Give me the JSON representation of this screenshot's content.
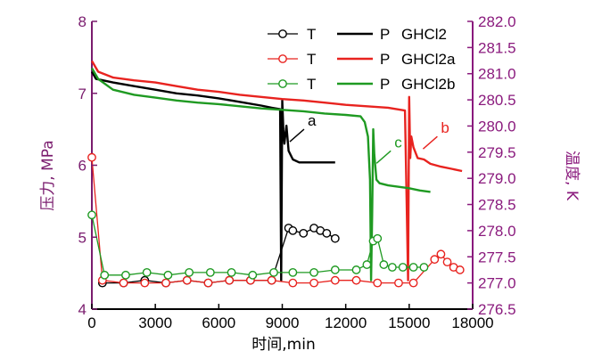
{
  "colors": {
    "left_axis": "#7a1c6e",
    "right_axis": "#8a1a7d",
    "x_axis": "#000000",
    "GHCl2": "#000000",
    "GHCl2a": "#e8231f",
    "GHCl2b": "#1f9a22"
  },
  "chart_data": {
    "type": "line",
    "xlabel": "时间,min",
    "ylabel_left": "压力, MPa",
    "ylabel_right": "温度, K",
    "xlim": [
      0,
      18000
    ],
    "ylim_left": [
      4,
      8
    ],
    "ylim_right": [
      276.5,
      282.0
    ],
    "x_ticks": [
      "0",
      "3000",
      "6000",
      "9000",
      "12000",
      "15000",
      "18000"
    ],
    "y_left_ticks": [
      "4",
      "5",
      "6",
      "7",
      "8"
    ],
    "y_right_ticks": [
      "276.5",
      "277.0",
      "277.5",
      "278.0",
      "278.5",
      "279.0",
      "279.5",
      "280.0",
      "280.5",
      "281.0",
      "281.5",
      "282.0"
    ],
    "legend": {
      "placement": "top-right",
      "rows": [
        {
          "t_label": "T",
          "p_label": "P",
          "name": "GHCl2",
          "color_key": "GHCl2"
        },
        {
          "t_label": "T",
          "p_label": "P",
          "name": "GHCl2a",
          "color_key": "GHCl2a"
        },
        {
          "t_label": "T",
          "p_label": "P",
          "name": "GHCl2b",
          "color_key": "GHCl2b"
        }
      ]
    },
    "annotations": [
      {
        "text": "a",
        "color_key": "GHCl2",
        "x": 10200,
        "y": 6.55,
        "axis": "left"
      },
      {
        "text": "c",
        "color_key": "GHCl2b",
        "x": 14300,
        "y": 6.25,
        "axis": "left"
      },
      {
        "text": "b",
        "color_key": "GHCl2a",
        "x": 16500,
        "y": 6.45,
        "axis": "left"
      }
    ],
    "series": [
      {
        "name": "GHCl2",
        "kind": "P",
        "axis": "left",
        "color_key": "GHCl2",
        "x": [
          0,
          200,
          1000,
          2000,
          3000,
          4000,
          5000,
          6000,
          7000,
          8000,
          8500,
          8900,
          8950,
          9000,
          9050,
          9100,
          9200,
          9300,
          9500,
          9800,
          10000,
          10500,
          11000,
          11500
        ],
        "y": [
          7.3,
          7.2,
          7.15,
          7.1,
          7.05,
          7.0,
          6.97,
          6.93,
          6.88,
          6.83,
          6.8,
          6.78,
          4.4,
          6.9,
          6.5,
          6.3,
          6.55,
          6.2,
          6.08,
          6.04,
          6.04,
          6.04,
          6.04,
          6.04
        ]
      },
      {
        "name": "GHCl2a",
        "kind": "P",
        "axis": "left",
        "color_key": "GHCl2a",
        "x": [
          0,
          300,
          1000,
          2000,
          3000,
          4000,
          5000,
          6000,
          7000,
          8000,
          9000,
          10000,
          11000,
          12000,
          13000,
          14000,
          14800,
          14950,
          15000,
          15050,
          15100,
          15200,
          15400,
          15700,
          16000,
          16500,
          17000,
          17500
        ],
        "y": [
          7.45,
          7.3,
          7.22,
          7.18,
          7.15,
          7.1,
          7.05,
          7.02,
          6.98,
          6.95,
          6.92,
          6.9,
          6.87,
          6.84,
          6.82,
          6.8,
          6.76,
          4.4,
          6.95,
          6.1,
          6.4,
          6.25,
          6.1,
          6.08,
          6.02,
          5.98,
          5.95,
          5.92
        ]
      },
      {
        "name": "GHCl2b",
        "kind": "P",
        "axis": "left",
        "color_key": "GHCl2b",
        "x": [
          0,
          300,
          1000,
          2000,
          3000,
          4000,
          5000,
          6000,
          7000,
          8000,
          9000,
          10000,
          11000,
          12000,
          12700,
          12900,
          13050,
          13150,
          13200,
          13250,
          13300,
          13350,
          13450,
          13600,
          14000,
          14500,
          15000,
          15500,
          16000
        ],
        "y": [
          7.35,
          7.2,
          7.05,
          6.98,
          6.94,
          6.9,
          6.87,
          6.85,
          6.82,
          6.79,
          6.77,
          6.75,
          6.72,
          6.7,
          6.68,
          6.6,
          6.4,
          5.8,
          4.4,
          5.3,
          6.5,
          6.15,
          5.8,
          5.75,
          5.72,
          5.7,
          5.68,
          5.65,
          5.63
        ]
      },
      {
        "name": "GHCl2",
        "kind": "T",
        "axis": "right",
        "color_key": "GHCl2",
        "x": [
          500,
          1500,
          2500,
          3500,
          4500,
          5500,
          6500,
          7500,
          8500,
          9300,
          9500,
          10000,
          10500,
          10800,
          11100,
          11500
        ],
        "y": [
          277.0,
          277.0,
          277.05,
          277.0,
          277.05,
          277.0,
          277.05,
          277.05,
          277.05,
          278.05,
          278.0,
          277.95,
          278.05,
          278.0,
          277.95,
          277.85
        ]
      },
      {
        "name": "GHCl2a",
        "kind": "T",
        "axis": "right",
        "color_key": "GHCl2a",
        "x": [
          0,
          500,
          1500,
          2500,
          3500,
          4500,
          5500,
          6500,
          7500,
          8500,
          9500,
          10500,
          11500,
          12500,
          13500,
          14500,
          15200,
          16200,
          16500,
          16800,
          17100,
          17400
        ],
        "y": [
          279.4,
          277.05,
          277.0,
          277.0,
          277.0,
          277.05,
          277.0,
          277.05,
          277.05,
          277.05,
          277.0,
          277.0,
          277.05,
          277.05,
          277.0,
          277.0,
          277.0,
          277.45,
          277.55,
          277.4,
          277.3,
          277.25
        ]
      },
      {
        "name": "GHCl2b",
        "kind": "T",
        "axis": "right",
        "color_key": "GHCl2b",
        "x": [
          0,
          600,
          1600,
          2600,
          3600,
          4600,
          5600,
          6600,
          7600,
          8600,
          9500,
          10500,
          11500,
          12500,
          13000,
          13300,
          13500,
          13800,
          14200,
          14700,
          15200,
          15700
        ],
        "y": [
          278.3,
          277.15,
          277.15,
          277.2,
          277.15,
          277.2,
          277.2,
          277.2,
          277.15,
          277.2,
          277.2,
          277.2,
          277.25,
          277.25,
          277.35,
          277.8,
          277.85,
          277.35,
          277.3,
          277.3,
          277.3,
          277.3
        ]
      }
    ]
  }
}
